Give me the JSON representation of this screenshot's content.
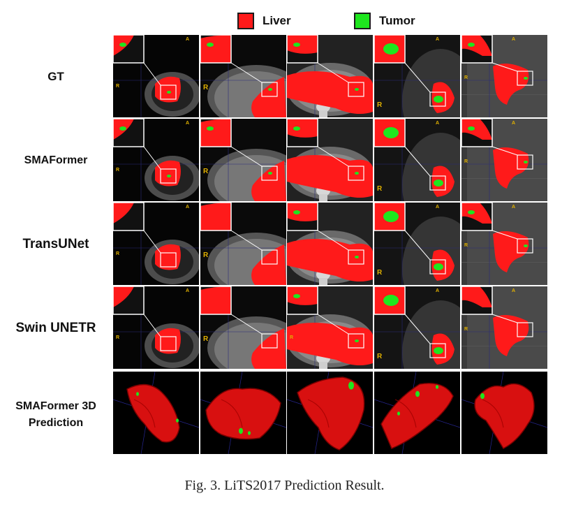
{
  "legend": {
    "liver": {
      "label": "Liver",
      "color": "#ff1a1a"
    },
    "tumor": {
      "label": "Tumor",
      "color": "#1ee61e"
    }
  },
  "rows": [
    {
      "label": "GT"
    },
    {
      "label": "SMAFormer"
    },
    {
      "label": "TransUNet"
    },
    {
      "label": "Swin UNETR"
    },
    {
      "label": "SMAFormer 3D Prediction"
    }
  ],
  "orientation_markers": {
    "anterior": "A",
    "right": "R"
  },
  "caption": "Fig. 3.   LiTS2017 Prediction Result."
}
